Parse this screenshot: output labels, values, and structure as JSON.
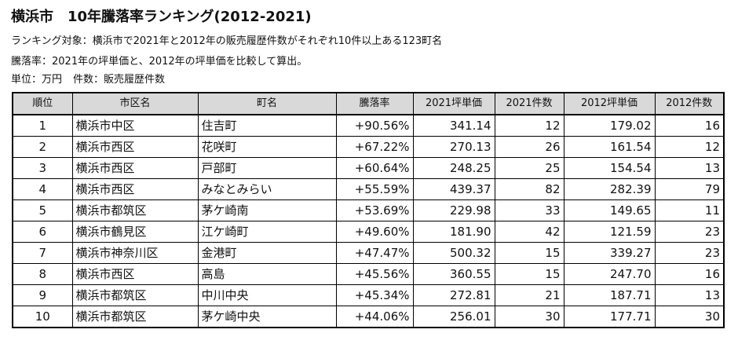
{
  "title": {
    "city": "横浜市",
    "main": "10年騰落率ランキング(2012-2021)"
  },
  "notes": {
    "line1": "ランキング対象：横浜市で2021年と2012年の販売履歴件数がそれぞれ10件以上ある123町名",
    "line2": "騰落率：2021年の坪単価と、2012年の坪単価を比較して算出。",
    "unit": "単位：万円",
    "count": "件数：販売履歴件数"
  },
  "table": {
    "headers": [
      "順位",
      "市区名",
      "町名",
      "騰落率",
      "2021坪単価",
      "2021件数",
      "2012坪単価",
      "2012件数"
    ],
    "rows": [
      [
        "1",
        "横浜市中区",
        "住吉町",
        "+90.56%",
        "341.14",
        "12",
        "179.02",
        "16"
      ],
      [
        "2",
        "横浜市西区",
        "花咲町",
        "+67.22%",
        "270.13",
        "26",
        "161.54",
        "12"
      ],
      [
        "3",
        "横浜市西区",
        "戸部町",
        "+60.64%",
        "248.25",
        "25",
        "154.54",
        "13"
      ],
      [
        "4",
        "横浜市西区",
        "みなとみらい",
        "+55.59%",
        "439.37",
        "82",
        "282.39",
        "79"
      ],
      [
        "5",
        "横浜市都筑区",
        "茅ケ崎南",
        "+53.69%",
        "229.98",
        "33",
        "149.65",
        "11"
      ],
      [
        "6",
        "横浜市鶴見区",
        "江ケ崎町",
        "+49.60%",
        "181.90",
        "42",
        "121.59",
        "23"
      ],
      [
        "7",
        "横浜市神奈川区",
        "金港町",
        "+47.47%",
        "500.32",
        "15",
        "339.27",
        "23"
      ],
      [
        "8",
        "横浜市西区",
        "高島",
        "+45.56%",
        "360.55",
        "15",
        "247.70",
        "16"
      ],
      [
        "9",
        "横浜市都筑区",
        "中川中央",
        "+45.34%",
        "272.81",
        "21",
        "187.71",
        "13"
      ],
      [
        "10",
        "横浜市都筑区",
        "茅ケ崎中央",
        "+44.06%",
        "256.01",
        "30",
        "177.71",
        "30"
      ]
    ]
  }
}
